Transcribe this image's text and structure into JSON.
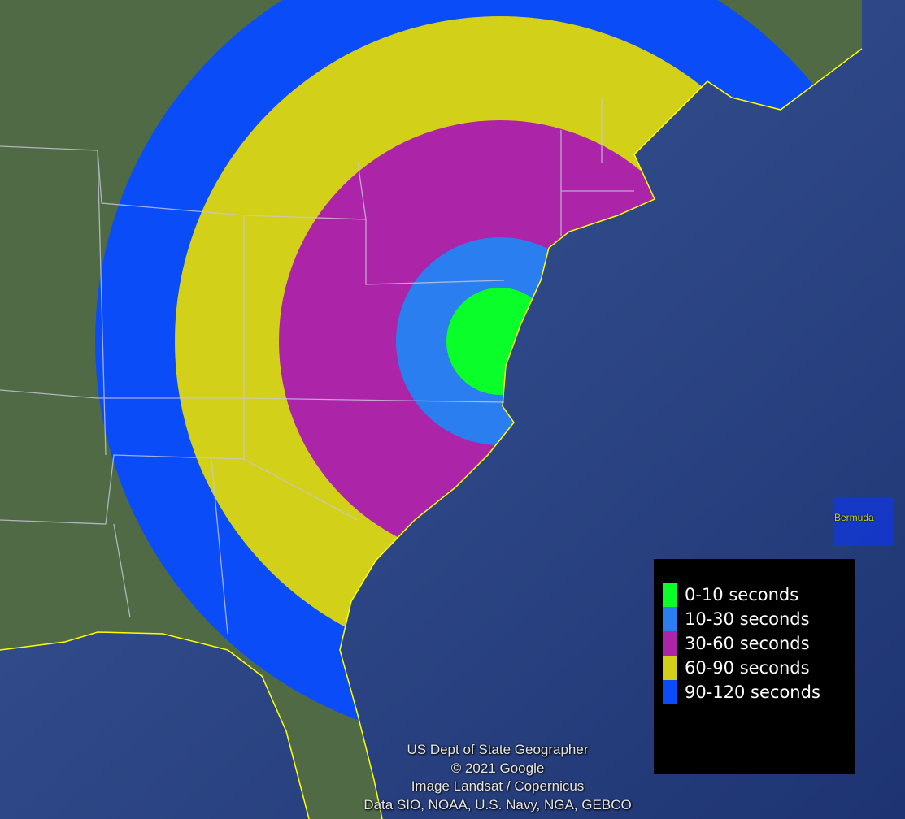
{
  "map": {
    "legend": [
      {
        "label": "0-10 seconds",
        "color": "#0aff2a"
      },
      {
        "label": "10-30 seconds",
        "color": "#2a7ef0"
      },
      {
        "label": "30-60 seconds",
        "color": "#ac24a8"
      },
      {
        "label": "60-90 seconds",
        "color": "#d2d018"
      },
      {
        "label": "90-120 seconds",
        "color": "#0a4cf8"
      }
    ],
    "place_label": "Bermuda",
    "attribution": [
      "US Dept of State Geographer",
      "© 2021 Google",
      "Image Landsat / Copernicus",
      "Data SIO, NOAA, U.S. Navy, NGA, GEBCO"
    ],
    "colors": {
      "ocean": "#2a4380",
      "land": "#4f6a45",
      "borders": "#c8c8d8",
      "coastline": "#ffff00"
    }
  }
}
